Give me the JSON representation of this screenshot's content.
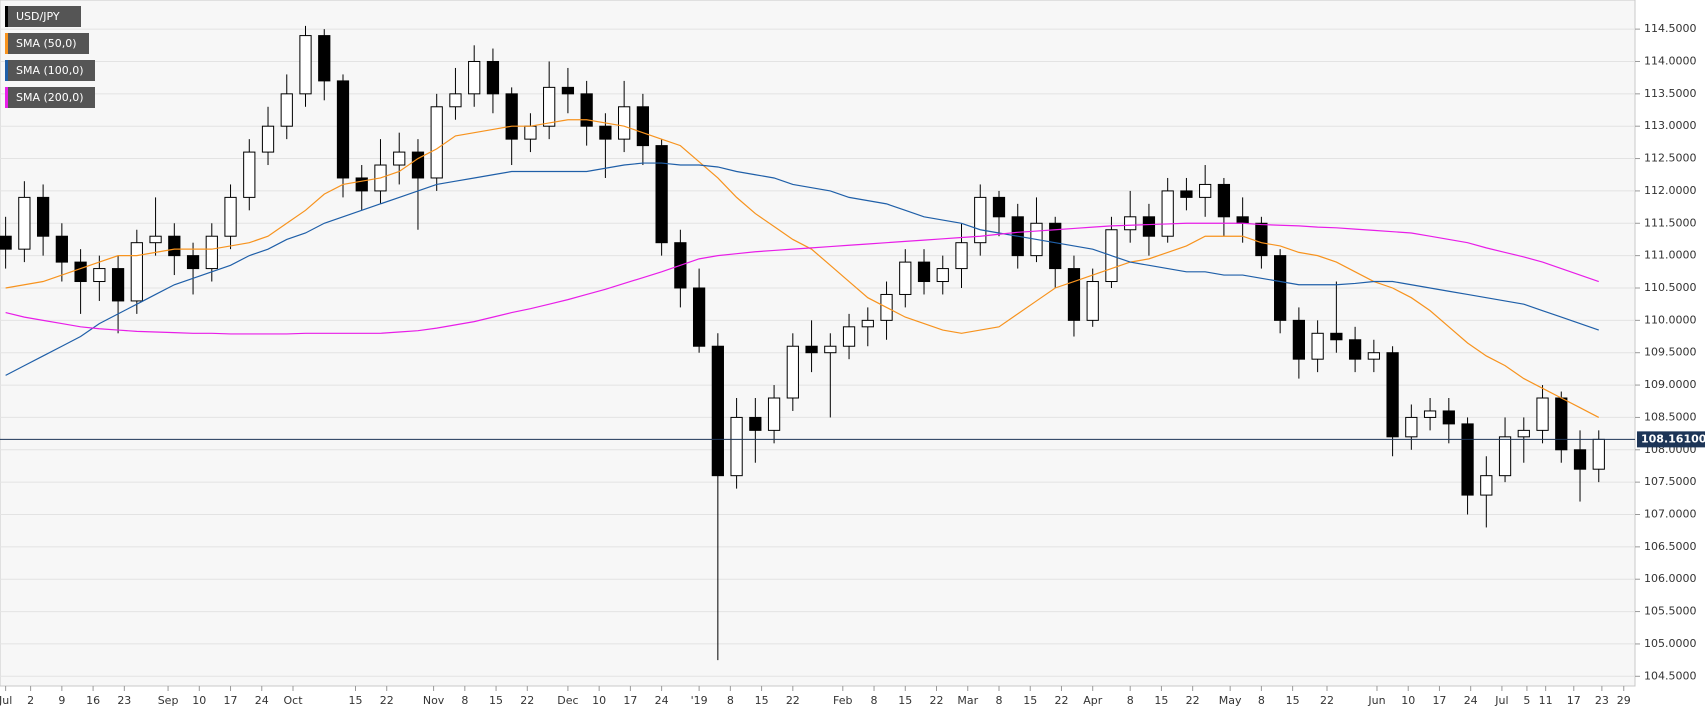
{
  "chart_data": {
    "type": "candlestick",
    "x": [
      0,
      3,
      6,
      9,
      12,
      15,
      18,
      21,
      24,
      27,
      30,
      33,
      36,
      39,
      42,
      45,
      48,
      51,
      54,
      57,
      60,
      63,
      66,
      69,
      72,
      75,
      78,
      81,
      84,
      87,
      90,
      93,
      96,
      99,
      102,
      105,
      108,
      111,
      114,
      117,
      120,
      123,
      126,
      129,
      132,
      135,
      138,
      141,
      144,
      147,
      150,
      153,
      156,
      159,
      162,
      165,
      168,
      171,
      174,
      177,
      180,
      183,
      186,
      189,
      192,
      195,
      198,
      201,
      204,
      207,
      210,
      213,
      216,
      219,
      222,
      225,
      228,
      231,
      234,
      237,
      240,
      243,
      246,
      249,
      252,
      255
    ],
    "series": [
      {
        "name": "USD/JPY",
        "color": "#000000",
        "open": [
          111.3,
          111.1,
          111.9,
          111.3,
          110.9,
          110.6,
          110.8,
          110.3,
          111.2,
          111.3,
          111.0,
          110.8,
          111.3,
          111.9,
          112.6,
          113.0,
          113.5,
          114.4,
          113.7,
          112.2,
          112.0,
          112.4,
          112.6,
          112.2,
          113.3,
          113.5,
          114.0,
          113.5,
          112.8,
          113.0,
          113.6,
          113.5,
          113.0,
          112.8,
          113.3,
          112.7,
          111.2,
          110.5,
          109.6,
          107.6,
          108.5,
          108.3,
          108.8,
          109.6,
          109.5,
          109.6,
          109.9,
          110.0,
          110.4,
          110.9,
          110.6,
          110.8,
          111.2,
          111.9,
          111.6,
          111.0,
          111.5,
          110.8,
          110.0,
          110.6,
          111.4,
          111.6,
          111.3,
          112.0,
          111.9,
          112.1,
          111.6,
          111.5,
          111.0,
          110.0,
          109.4,
          109.8,
          109.7,
          109.4,
          109.5,
          108.2,
          108.5,
          108.6,
          108.4,
          107.3,
          107.6,
          108.2,
          108.3,
          108.8,
          108.0,
          107.7
        ],
        "high": [
          111.6,
          112.15,
          112.1,
          111.5,
          111.1,
          111.0,
          111.0,
          111.4,
          111.9,
          111.5,
          111.2,
          111.5,
          112.1,
          112.8,
          113.3,
          113.8,
          114.55,
          114.5,
          113.8,
          112.4,
          112.8,
          112.9,
          112.8,
          113.5,
          113.9,
          114.25,
          114.2,
          113.6,
          113.2,
          114.0,
          113.9,
          113.7,
          113.2,
          113.7,
          113.5,
          112.8,
          111.4,
          110.8,
          109.8,
          108.8,
          108.8,
          109.0,
          109.8,
          110.0,
          109.8,
          110.1,
          110.2,
          110.6,
          111.1,
          111.1,
          111.0,
          111.5,
          112.1,
          112.0,
          111.8,
          111.9,
          111.6,
          111.0,
          110.8,
          111.6,
          112.0,
          111.8,
          112.2,
          112.2,
          112.4,
          112.2,
          111.9,
          111.6,
          111.1,
          110.2,
          110.0,
          110.6,
          109.9,
          109.7,
          109.6,
          108.7,
          108.8,
          108.8,
          108.5,
          107.9,
          108.5,
          108.5,
          109.0,
          108.9,
          108.3,
          108.3
        ],
        "low": [
          110.8,
          110.9,
          111.0,
          110.6,
          110.1,
          110.3,
          109.8,
          110.1,
          111.0,
          110.7,
          110.4,
          110.6,
          111.1,
          111.7,
          112.4,
          112.8,
          113.3,
          113.4,
          111.9,
          111.7,
          111.8,
          112.1,
          111.4,
          112.0,
          113.1,
          113.3,
          113.2,
          112.4,
          112.6,
          112.8,
          113.2,
          112.7,
          112.2,
          112.6,
          112.4,
          111.0,
          110.2,
          109.5,
          104.75,
          107.4,
          107.8,
          108.1,
          108.6,
          109.2,
          108.5,
          109.4,
          109.6,
          109.7,
          110.2,
          110.4,
          110.4,
          110.5,
          111.0,
          111.3,
          110.8,
          110.9,
          110.5,
          109.75,
          109.9,
          110.5,
          111.2,
          111.0,
          111.2,
          111.7,
          111.6,
          111.3,
          111.2,
          110.8,
          109.8,
          109.1,
          109.2,
          109.5,
          109.2,
          109.2,
          107.9,
          108.0,
          108.3,
          108.1,
          107.0,
          106.8,
          107.5,
          107.8,
          108.1,
          107.8,
          107.2,
          107.5
        ],
        "close": [
          111.1,
          111.9,
          111.3,
          110.9,
          110.6,
          110.8,
          110.3,
          111.2,
          111.3,
          111.0,
          110.8,
          111.3,
          111.9,
          112.6,
          113.0,
          113.5,
          114.4,
          113.7,
          112.2,
          112.0,
          112.4,
          112.6,
          112.2,
          113.3,
          113.5,
          114.0,
          113.5,
          112.8,
          113.0,
          113.6,
          113.5,
          113.0,
          112.8,
          113.3,
          112.7,
          111.2,
          110.5,
          109.6,
          107.6,
          108.5,
          108.3,
          108.8,
          109.6,
          109.5,
          109.6,
          109.9,
          110.0,
          110.4,
          110.9,
          110.6,
          110.8,
          111.2,
          111.9,
          111.6,
          111.0,
          111.5,
          110.8,
          110.0,
          110.6,
          111.4,
          111.6,
          111.3,
          112.0,
          111.9,
          112.1,
          111.6,
          111.5,
          111.0,
          110.0,
          109.4,
          109.8,
          109.7,
          109.4,
          109.5,
          108.2,
          108.5,
          108.6,
          108.4,
          107.3,
          107.6,
          108.2,
          108.3,
          108.8,
          108.0,
          107.7,
          108.161
        ]
      },
      {
        "name": "SMA (50,0)",
        "color": "#f7931e",
        "values": [
          110.5,
          110.55,
          110.6,
          110.7,
          110.8,
          110.9,
          111.0,
          111.0,
          111.05,
          111.1,
          111.1,
          111.1,
          111.15,
          111.2,
          111.3,
          111.5,
          111.7,
          111.95,
          112.1,
          112.15,
          112.2,
          112.3,
          112.5,
          112.65,
          112.85,
          112.9,
          112.95,
          113.0,
          113.0,
          113.05,
          113.1,
          113.1,
          113.05,
          113.0,
          112.9,
          112.8,
          112.7,
          112.45,
          112.2,
          111.9,
          111.65,
          111.45,
          111.25,
          111.1,
          110.85,
          110.6,
          110.35,
          110.2,
          110.05,
          109.95,
          109.85,
          109.8,
          109.85,
          109.9,
          110.1,
          110.3,
          110.5,
          110.6,
          110.7,
          110.8,
          110.9,
          110.95,
          111.05,
          111.15,
          111.3,
          111.3,
          111.3,
          111.2,
          111.15,
          111.05,
          111.0,
          110.9,
          110.75,
          110.6,
          110.5,
          110.35,
          110.15,
          109.9,
          109.65,
          109.45,
          109.3,
          109.1,
          108.95,
          108.8,
          108.65,
          108.5
        ]
      },
      {
        "name": "SMA (100,0)",
        "color": "#1f5fa8",
        "values": [
          109.15,
          109.3,
          109.45,
          109.6,
          109.75,
          109.95,
          110.1,
          110.25,
          110.4,
          110.55,
          110.65,
          110.75,
          110.85,
          111.0,
          111.1,
          111.25,
          111.35,
          111.5,
          111.6,
          111.7,
          111.8,
          111.9,
          112.0,
          112.1,
          112.15,
          112.2,
          112.25,
          112.3,
          112.3,
          112.3,
          112.3,
          112.3,
          112.35,
          112.4,
          112.43,
          112.43,
          112.4,
          112.4,
          112.37,
          112.3,
          112.25,
          112.2,
          112.1,
          112.05,
          112.0,
          111.9,
          111.85,
          111.8,
          111.7,
          111.6,
          111.55,
          111.5,
          111.4,
          111.35,
          111.3,
          111.25,
          111.2,
          111.15,
          111.1,
          111.0,
          110.9,
          110.85,
          110.8,
          110.75,
          110.75,
          110.7,
          110.7,
          110.65,
          110.6,
          110.55,
          110.55,
          110.55,
          110.57,
          110.6,
          110.6,
          110.55,
          110.5,
          110.45,
          110.4,
          110.35,
          110.3,
          110.25,
          110.15,
          110.05,
          109.95,
          109.85
        ]
      },
      {
        "name": "SMA (200,0)",
        "color": "#e81ee8",
        "values": [
          110.12,
          110.05,
          110.0,
          109.95,
          109.9,
          109.87,
          109.85,
          109.83,
          109.82,
          109.81,
          109.8,
          109.8,
          109.79,
          109.79,
          109.79,
          109.79,
          109.8,
          109.8,
          109.8,
          109.8,
          109.8,
          109.82,
          109.84,
          109.88,
          109.93,
          109.98,
          110.05,
          110.12,
          110.18,
          110.25,
          110.32,
          110.4,
          110.48,
          110.57,
          110.66,
          110.75,
          110.85,
          110.95,
          111.0,
          111.03,
          111.06,
          111.08,
          111.1,
          111.12,
          111.14,
          111.16,
          111.18,
          111.2,
          111.22,
          111.24,
          111.26,
          111.28,
          111.3,
          111.33,
          111.36,
          111.38,
          111.4,
          111.42,
          111.44,
          111.46,
          111.47,
          111.48,
          111.49,
          111.5,
          111.5,
          111.5,
          111.5,
          111.48,
          111.47,
          111.46,
          111.44,
          111.43,
          111.41,
          111.39,
          111.37,
          111.35,
          111.3,
          111.25,
          111.2,
          111.12,
          111.05,
          110.98,
          110.9,
          110.8,
          110.7,
          110.6
        ]
      }
    ],
    "last_price": {
      "value": 108.161,
      "label": "108.16100"
    },
    "xlim": [
      -0.9,
      260.8
    ],
    "ylim": [
      104.35,
      114.95
    ],
    "xticks": [
      {
        "value": 0,
        "label": "Jul"
      },
      {
        "value": 4,
        "label": "2"
      },
      {
        "value": 9,
        "label": "9"
      },
      {
        "value": 14,
        "label": "16"
      },
      {
        "value": 19,
        "label": "23"
      },
      {
        "value": 26,
        "label": "Sep"
      },
      {
        "value": 31,
        "label": "10"
      },
      {
        "value": 36,
        "label": "17"
      },
      {
        "value": 41,
        "label": "24"
      },
      {
        "value": 46,
        "label": "Oct"
      },
      {
        "value": 56,
        "label": "15"
      },
      {
        "value": 61,
        "label": "22"
      },
      {
        "value": 68.5,
        "label": "Nov"
      },
      {
        "value": 73.5,
        "label": "8"
      },
      {
        "value": 78.5,
        "label": "15"
      },
      {
        "value": 83.5,
        "label": "22"
      },
      {
        "value": 90,
        "label": "Dec"
      },
      {
        "value": 95,
        "label": "10"
      },
      {
        "value": 100,
        "label": "17"
      },
      {
        "value": 105,
        "label": "24"
      },
      {
        "value": 111,
        "label": "'19"
      },
      {
        "value": 116,
        "label": "8"
      },
      {
        "value": 121,
        "label": "15"
      },
      {
        "value": 126,
        "label": "22"
      },
      {
        "value": 134,
        "label": "Feb"
      },
      {
        "value": 139,
        "label": "8"
      },
      {
        "value": 144,
        "label": "15"
      },
      {
        "value": 149,
        "label": "22"
      },
      {
        "value": 154,
        "label": "Mar"
      },
      {
        "value": 159,
        "label": "8"
      },
      {
        "value": 164,
        "label": "15"
      },
      {
        "value": 169,
        "label": "22"
      },
      {
        "value": 174,
        "label": "Apr"
      },
      {
        "value": 180,
        "label": "8"
      },
      {
        "value": 185,
        "label": "15"
      },
      {
        "value": 190,
        "label": "22"
      },
      {
        "value": 196,
        "label": "May"
      },
      {
        "value": 201,
        "label": "8"
      },
      {
        "value": 206,
        "label": "15"
      },
      {
        "value": 211.5,
        "label": "22"
      },
      {
        "value": 219.5,
        "label": "Jun"
      },
      {
        "value": 224.5,
        "label": "10"
      },
      {
        "value": 229.5,
        "label": "17"
      },
      {
        "value": 234.5,
        "label": "24"
      },
      {
        "value": 239.5,
        "label": "Jul"
      },
      {
        "value": 243.5,
        "label": "5"
      },
      {
        "value": 246.5,
        "label": "11"
      },
      {
        "value": 251,
        "label": "17"
      },
      {
        "value": 255.5,
        "label": "23"
      },
      {
        "value": 259,
        "label": "29"
      }
    ],
    "yticks": [
      {
        "value": 104.5,
        "label": "104.5000"
      },
      {
        "value": 105,
        "label": "105.0000"
      },
      {
        "value": 105.5,
        "label": "105.5000"
      },
      {
        "value": 106,
        "label": "106.0000"
      },
      {
        "value": 106.5,
        "label": "106.5000"
      },
      {
        "value": 107,
        "label": "107.0000"
      },
      {
        "value": 107.5,
        "label": "107.5000"
      },
      {
        "value": 108,
        "label": "108.0000"
      },
      {
        "value": 108.5,
        "label": "108.5000"
      },
      {
        "value": 109,
        "label": "109.0000"
      },
      {
        "value": 109.5,
        "label": "109.5000"
      },
      {
        "value": 110,
        "label": "110.0000"
      },
      {
        "value": 110.5,
        "label": "110.5000"
      },
      {
        "value": 111,
        "label": "111.0000"
      },
      {
        "value": 111.5,
        "label": "111.5000"
      },
      {
        "value": 112,
        "label": "112.0000"
      },
      {
        "value": 112.5,
        "label": "112.5000"
      },
      {
        "value": 113,
        "label": "113.0000"
      },
      {
        "value": 113.5,
        "label": "113.5000"
      },
      {
        "value": 114,
        "label": "114.0000"
      },
      {
        "value": 114.5,
        "label": "114.5000"
      }
    ],
    "grid": true,
    "legend": "top-left"
  }
}
